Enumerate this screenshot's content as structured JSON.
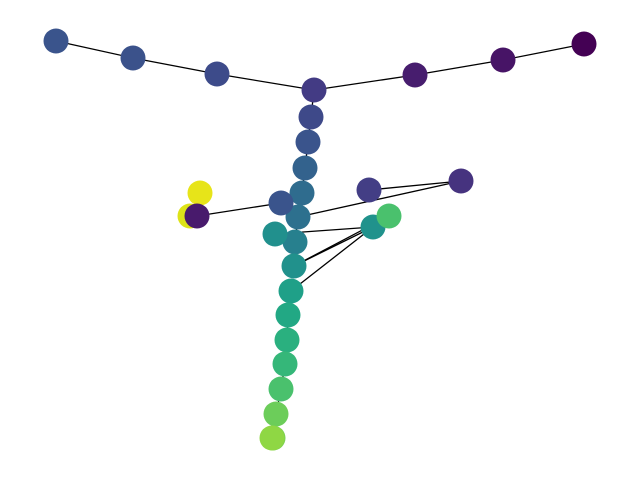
{
  "graph": {
    "nodes": [
      {
        "id": 0,
        "color": "#440154"
      },
      {
        "id": 1,
        "color": "#471466"
      },
      {
        "id": 2,
        "color": "#471d6e"
      },
      {
        "id": 3,
        "color": "#433b84"
      },
      {
        "id": 4,
        "color": "#3d4b8a"
      },
      {
        "id": 5,
        "color": "#3b528b"
      },
      {
        "id": 6,
        "color": "#3a548c"
      },
      {
        "id": 7,
        "color": "#3e4989"
      },
      {
        "id": 8,
        "color": "#3a548c"
      },
      {
        "id": 9,
        "color": "#33628d"
      },
      {
        "id": 10,
        "color": "#2f6c8e"
      },
      {
        "id": 11,
        "color": "#2d708e"
      },
      {
        "id": 12,
        "color": "#46337f"
      },
      {
        "id": 13,
        "color": "#433e85"
      },
      {
        "id": 14,
        "color": "#3a548c"
      },
      {
        "id": 15,
        "color": "#27808e"
      },
      {
        "id": 16,
        "color": "#21908d"
      },
      {
        "id": 17,
        "color": "#20928c"
      },
      {
        "id": 18,
        "color": "#21918c"
      },
      {
        "id": 19,
        "color": "#4ac16d"
      },
      {
        "id": 20,
        "color": "#1fa088"
      },
      {
        "id": 21,
        "color": "#22a884"
      },
      {
        "id": 22,
        "color": "#2ab07f"
      },
      {
        "id": 23,
        "color": "#35b779"
      },
      {
        "id": 24,
        "color": "#4ac16d"
      },
      {
        "id": 25,
        "color": "#6ccd5a"
      },
      {
        "id": 26,
        "color": "#7ad151"
      },
      {
        "id": 27,
        "color": "#8fd744"
      },
      {
        "id": 28,
        "color": "#e7e419"
      },
      {
        "id": 29,
        "color": "#dde318"
      },
      {
        "id": 30,
        "color": "#481a6c"
      }
    ],
    "edges": [
      [
        0,
        1
      ],
      [
        1,
        2
      ],
      [
        2,
        3
      ],
      [
        3,
        4
      ],
      [
        4,
        5
      ],
      [
        5,
        6
      ],
      [
        3,
        7
      ],
      [
        7,
        8
      ],
      [
        8,
        9
      ],
      [
        9,
        10
      ],
      [
        10,
        11
      ],
      [
        11,
        12
      ],
      [
        12,
        13
      ],
      [
        11,
        14
      ],
      [
        14,
        30
      ],
      [
        30,
        28
      ],
      [
        30,
        29
      ],
      [
        11,
        15
      ],
      [
        15,
        16
      ],
      [
        16,
        17
      ],
      [
        17,
        18
      ],
      [
        18,
        19
      ],
      [
        17,
        20
      ],
      [
        20,
        21
      ],
      [
        21,
        22
      ],
      [
        22,
        23
      ],
      [
        23,
        24
      ],
      [
        24,
        25
      ],
      [
        25,
        26
      ],
      [
        26,
        27
      ]
    ]
  }
}
